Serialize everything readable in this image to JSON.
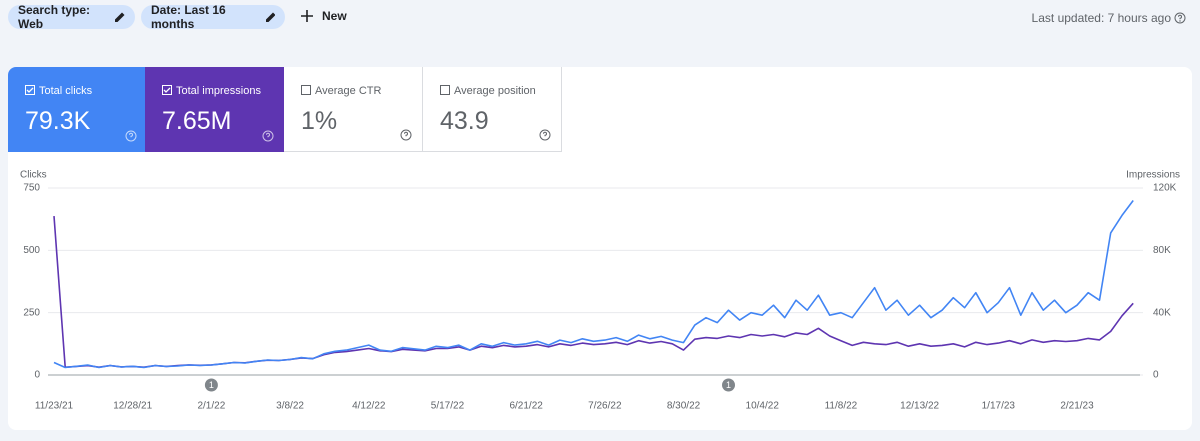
{
  "filters": [
    "Search type: Web",
    "Date: Last 16 months"
  ],
  "new_button": "New",
  "last_updated": "Last updated: 7 hours ago",
  "metrics": [
    {
      "label": "Total clicks",
      "value": "79.3K"
    },
    {
      "label": "Total impressions",
      "value": "7.65M"
    },
    {
      "label": "Average CTR",
      "value": "1%"
    },
    {
      "label": "Average position",
      "value": "43.9"
    }
  ],
  "chart_data": {
    "type": "line",
    "categories": [
      "11/23/21",
      null,
      null,
      null,
      null,
      null,
      null,
      "12/28/21",
      null,
      null,
      null,
      null,
      null,
      null,
      "2/1/22",
      null,
      null,
      null,
      null,
      null,
      null,
      "3/8/22",
      null,
      null,
      null,
      null,
      null,
      null,
      "4/12/22",
      null,
      null,
      null,
      null,
      null,
      null,
      "5/17/22",
      null,
      null,
      null,
      null,
      null,
      null,
      "6/21/22",
      null,
      null,
      null,
      null,
      null,
      null,
      "7/26/22",
      null,
      null,
      null,
      null,
      null,
      null,
      "8/30/22",
      null,
      null,
      null,
      null,
      null,
      null,
      "10/4/22",
      null,
      null,
      null,
      null,
      null,
      null,
      "11/8/22",
      null,
      null,
      null,
      null,
      null,
      null,
      "12/13/22",
      null,
      null,
      null,
      null,
      null,
      null,
      "1/17/23",
      null,
      null,
      null,
      null,
      null,
      null,
      "2/21/23",
      null,
      null,
      null,
      null,
      null
    ],
    "series": [
      {
        "name": "Clicks",
        "color": "#4285f4",
        "values": [
          50,
          30,
          35,
          40,
          30,
          38,
          32,
          35,
          30,
          38,
          34,
          36,
          40,
          38,
          40,
          45,
          50,
          48,
          55,
          60,
          58,
          62,
          70,
          65,
          85,
          95,
          100,
          110,
          120,
          100,
          95,
          110,
          105,
          100,
          115,
          110,
          120,
          100,
          125,
          115,
          130,
          120,
          125,
          135,
          120,
          140,
          130,
          145,
          135,
          140,
          150,
          135,
          160,
          145,
          155,
          140,
          130,
          200,
          230,
          210,
          260,
          220,
          250,
          240,
          280,
          230,
          300,
          260,
          320,
          240,
          250,
          230,
          290,
          350,
          260,
          300,
          240,
          280,
          230,
          260,
          310,
          270,
          330,
          250,
          290,
          350,
          240,
          330,
          260,
          300,
          250,
          280,
          330,
          300,
          570,
          640,
          700
        ]
      },
      {
        "name": "Impressions",
        "color": "#5e35b1",
        "axis": "y2",
        "values": [
          102000,
          5000,
          5500,
          6000,
          5000,
          6000,
          5200,
          5500,
          5000,
          6000,
          5500,
          6000,
          6500,
          6200,
          6500,
          7200,
          8000,
          7800,
          8800,
          9500,
          9300,
          10000,
          11000,
          10500,
          13000,
          14500,
          15000,
          16000,
          17000,
          15500,
          15000,
          16500,
          16000,
          15500,
          17000,
          17000,
          18000,
          16000,
          18500,
          17500,
          19000,
          18000,
          18500,
          19500,
          18000,
          20000,
          19000,
          20500,
          19500,
          20000,
          21000,
          19500,
          22000,
          20500,
          21500,
          20000,
          16000,
          23000,
          24000,
          23500,
          25000,
          24000,
          26000,
          25000,
          26000,
          24500,
          27000,
          26000,
          30000,
          25000,
          22000,
          19000,
          21000,
          20000,
          19500,
          21000,
          18500,
          20000,
          18500,
          19000,
          20000,
          18000,
          21000,
          19500,
          20500,
          22000,
          20000,
          22500,
          21000,
          22000,
          21500,
          22000,
          23500,
          22500,
          28000,
          38000,
          46000
        ]
      }
    ],
    "ylim": [
      0,
      750
    ],
    "yticks": [
      0,
      250,
      500,
      750
    ],
    "y2lim": [
      0,
      120000
    ],
    "y2ticks": [
      0,
      {
        "value": 40000,
        "label": "40K"
      },
      {
        "value": 80000,
        "label": "80K"
      },
      {
        "value": 120000,
        "label": "120K"
      }
    ],
    "grid": true,
    "annotations": [
      {
        "index": 14,
        "label": "1"
      },
      {
        "index": 60,
        "label": "1"
      }
    ]
  }
}
